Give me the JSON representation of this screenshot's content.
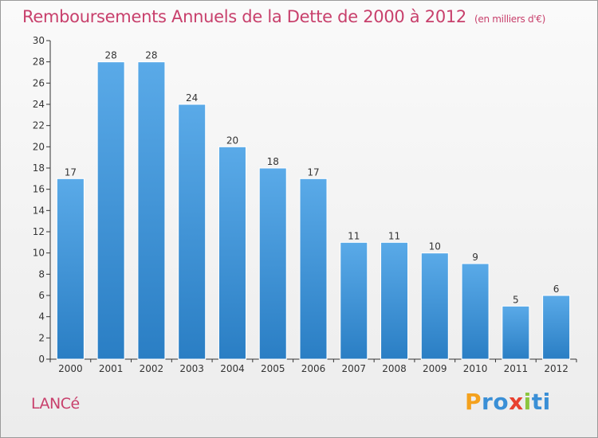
{
  "header": {
    "title": "Remboursements Annuels de la Dette de 2000 à 2012",
    "subtitle": "(en milliers d'€)"
  },
  "footer": {
    "commune": "LANCé",
    "brand": "Proxiti",
    "brand_letters": [
      "P",
      "r",
      "o",
      "x",
      "i",
      "t",
      "i"
    ],
    "brand_colors": [
      "#f4a11d",
      "#3a8fd6",
      "#3a8fd6",
      "#e8402f",
      "#8cc63f",
      "#3a8fd6",
      "#3a8fd6"
    ]
  },
  "colors": {
    "accent": "#c8406c",
    "bar_top": "#5aaae8",
    "bar_bottom": "#2a7ec4"
  },
  "chart_data": {
    "type": "bar",
    "title": "Remboursements Annuels de la Dette de 2000 à 2012",
    "subtitle": "(en milliers d'€)",
    "xlabel": "",
    "ylabel": "",
    "categories": [
      "2000",
      "2001",
      "2002",
      "2003",
      "2004",
      "2005",
      "2006",
      "2007",
      "2008",
      "2009",
      "2010",
      "2011",
      "2012"
    ],
    "values": [
      17,
      28,
      28,
      24,
      20,
      18,
      17,
      11,
      11,
      10,
      9,
      5,
      6
    ],
    "value_labels": [
      "17",
      "28",
      "28",
      "24",
      "20",
      "18",
      "17",
      "11",
      "11",
      "10",
      "9",
      "5",
      "6"
    ],
    "ylim": [
      0,
      30
    ],
    "yticks": [
      0,
      2,
      4,
      6,
      8,
      10,
      12,
      14,
      16,
      18,
      20,
      22,
      24,
      26,
      28,
      30
    ],
    "grid": false,
    "legend": "none"
  }
}
